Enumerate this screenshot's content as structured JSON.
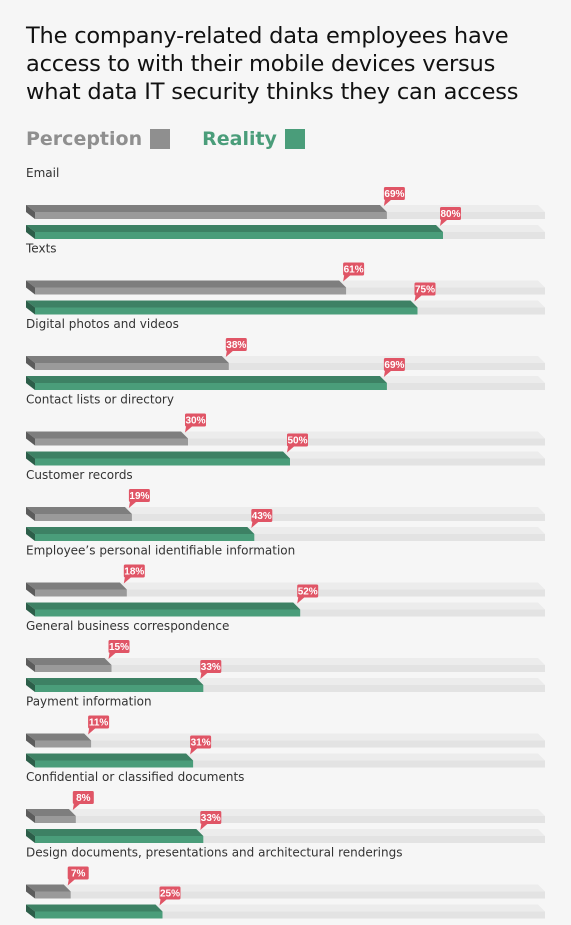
{
  "title_lines": [
    "The company-related data employees have",
    "access to with their mobile devices versus",
    "what data IT security thinks they can access"
  ],
  "legend": [
    {
      "label": "Perception",
      "color": "#8f8f8f"
    },
    {
      "label": "Reality",
      "color": "#4a9d7a"
    }
  ],
  "colors": {
    "perception": "#9a9a9a",
    "reality": "#4a9d7a",
    "track": "#e3e3e3",
    "badge": "#e05566"
  },
  "chart_data": {
    "type": "bar",
    "orientation": "horizontal",
    "xlim": [
      0,
      100
    ],
    "value_suffix": "%",
    "categories": [
      "Email",
      "Texts",
      "Digital photos and videos",
      "Contact lists or directory",
      "Customer records",
      "Employee’s personal identifiable information",
      "General business correspondence",
      "Payment information",
      "Confidential or classified documents",
      "Design documents, presentations and architectural renderings"
    ],
    "series": [
      {
        "name": "Perception",
        "values": [
          69,
          61,
          38,
          30,
          19,
          18,
          15,
          11,
          8,
          7
        ]
      },
      {
        "name": "Reality",
        "values": [
          80,
          75,
          69,
          50,
          43,
          52,
          33,
          31,
          33,
          25
        ]
      }
    ]
  }
}
